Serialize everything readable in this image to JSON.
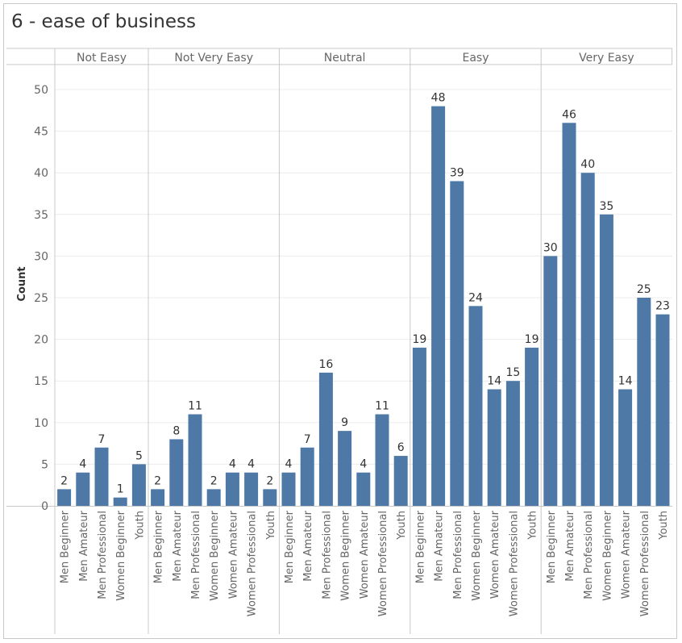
{
  "title": "6 - ease of business",
  "colors": {
    "bar": "#4e79a7",
    "grid": "#ececec",
    "divider": "#c8c8c8",
    "text": "#666666"
  },
  "chart_data": {
    "type": "bar",
    "title": "6 - ease of business",
    "xlabel": "",
    "ylabel": "Count",
    "ylim": [
      0,
      50
    ],
    "yticks": [
      0,
      5,
      10,
      15,
      20,
      25,
      30,
      35,
      40,
      45,
      50
    ],
    "grid": true,
    "panels": [
      {
        "name": "Not Easy",
        "categories": [
          "Men Beginner",
          "Men Amateur",
          "Men Professional",
          "Women Beginner",
          "Youth"
        ],
        "values": [
          2,
          4,
          7,
          1,
          5
        ]
      },
      {
        "name": "Not Very Easy",
        "categories": [
          "Men Beginner",
          "Men Amateur",
          "Men Professional",
          "Women Beginner",
          "Women Amateur",
          "Women Professional",
          "Youth"
        ],
        "values": [
          2,
          8,
          11,
          2,
          4,
          4,
          2
        ]
      },
      {
        "name": "Neutral",
        "categories": [
          "Men Beginner",
          "Men Amateur",
          "Men Professional",
          "Women Beginner",
          "Women Amateur",
          "Women Professional",
          "Youth"
        ],
        "values": [
          4,
          7,
          16,
          9,
          4,
          11,
          6
        ]
      },
      {
        "name": "Easy",
        "categories": [
          "Men Beginner",
          "Men Amateur",
          "Men Professional",
          "Women Beginner",
          "Women Amateur",
          "Women Professional",
          "Youth"
        ],
        "values": [
          19,
          48,
          39,
          24,
          14,
          15,
          19
        ]
      },
      {
        "name": "Very Easy",
        "categories": [
          "Men Beginner",
          "Men Amateur",
          "Men Professional",
          "Women Beginner",
          "Women Amateur",
          "Women Professional",
          "Youth"
        ],
        "values": [
          30,
          46,
          40,
          35,
          14,
          25,
          23
        ]
      }
    ]
  }
}
